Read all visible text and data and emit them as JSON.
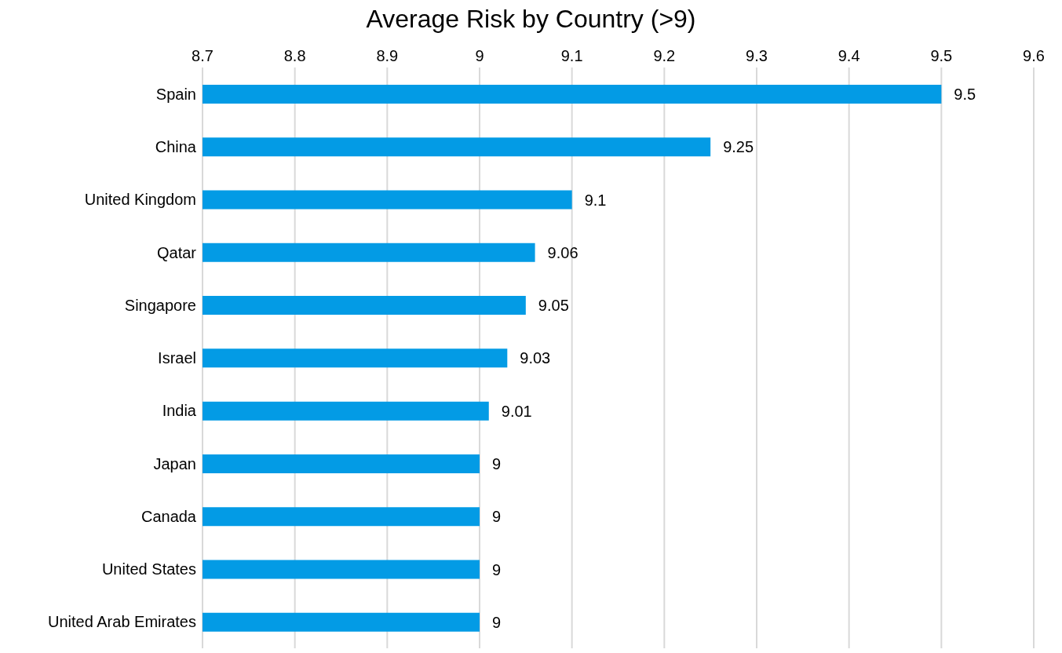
{
  "chart_data": {
    "type": "bar",
    "orientation": "horizontal",
    "title": "Average Risk by Country (>9)",
    "categories": [
      "Spain",
      "China",
      "United Kingdom",
      "Qatar",
      "Singapore",
      "Israel",
      "India",
      "Japan",
      "Canada",
      "United States",
      "United Arab Emirates"
    ],
    "values": [
      9.5,
      9.25,
      9.1,
      9.06,
      9.05,
      9.03,
      9.01,
      9,
      9,
      9,
      9
    ],
    "color": "#039be5",
    "xlim": [
      8.7,
      9.6
    ],
    "xticks": [
      8.7,
      8.8,
      8.9,
      9,
      9.1,
      9.2,
      9.3,
      9.4,
      9.5,
      9.6
    ],
    "grid": "x",
    "data_labels": true,
    "legend": false
  }
}
